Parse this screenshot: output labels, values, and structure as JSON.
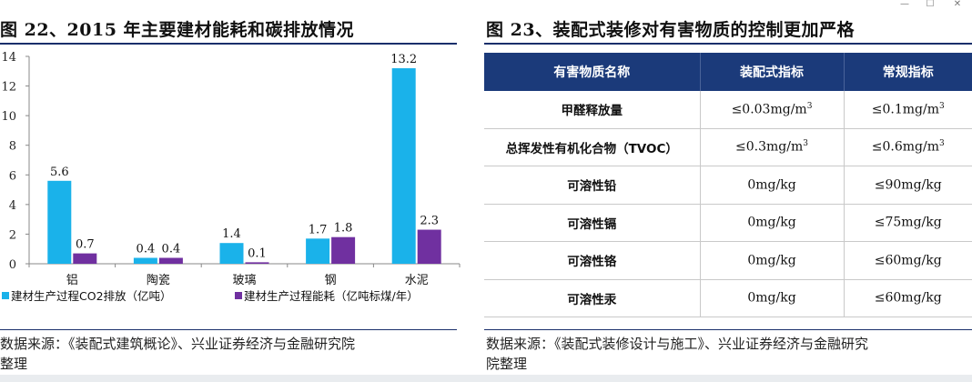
{
  "window": {
    "minimize": "—",
    "maximize": "☐",
    "close": "✕"
  },
  "left": {
    "title": "图 22、2015 年主要建材能耗和碳排放情况",
    "source_line1": "数据来源：《装配式建筑概论》、兴业证券经济与金融研究院",
    "source_line2": "整理"
  },
  "right": {
    "title": "图 23、装配式装修对有害物质的控制更加严格",
    "source_line1": "数据来源：《装配式装修设计与施工》、兴业证券经济与金融研究",
    "source_line2": "院整理",
    "table": {
      "headers": [
        "有害物质名称",
        "装配式指标",
        "常规指标"
      ],
      "rows": [
        {
          "name": "甲醛释放量",
          "a": "≤0.03mg/m",
          "a_sup": "3",
          "b": "≤0.1mg/m",
          "b_sup": "3"
        },
        {
          "name": "总挥发性有机化合物（TVOC）",
          "a": "≤0.3mg/m",
          "a_sup": "3",
          "b": "≤0.6mg/m",
          "b_sup": "3"
        },
        {
          "name": "可溶性铅",
          "a": "0mg/kg",
          "a_sup": "",
          "b": "≤90mg/kg",
          "b_sup": ""
        },
        {
          "name": "可溶性镉",
          "a": "0mg/kg",
          "a_sup": "",
          "b": "≤75mg/kg",
          "b_sup": ""
        },
        {
          "name": "可溶性铬",
          "a": "0mg/kg",
          "a_sup": "",
          "b": "≤60mg/kg",
          "b_sup": ""
        },
        {
          "name": "可溶性汞",
          "a": "0mg/kg",
          "a_sup": "",
          "b": "≤60mg/kg",
          "b_sup": ""
        }
      ]
    }
  },
  "chart_data": {
    "type": "bar",
    "categories": [
      "铝",
      "陶瓷",
      "玻璃",
      "钢",
      "水泥"
    ],
    "series": [
      {
        "name": "建材生产过程CO2排放（亿吨）",
        "values": [
          5.6,
          0.4,
          1.4,
          1.7,
          13.2
        ],
        "color": "#1ab2ea"
      },
      {
        "name": "建材生产过程能耗（亿吨标煤/年）",
        "values": [
          0.7,
          0.4,
          0.1,
          1.8,
          2.3
        ],
        "color": "#7030a0"
      }
    ],
    "data_labels": [
      "5.6",
      "0.7",
      "0.4",
      "0.4",
      "1.4",
      "0.1",
      "1.7",
      "1.8",
      "13.2",
      "2.3"
    ],
    "ylim": [
      0,
      14
    ],
    "yticks": [
      0,
      2,
      4,
      6,
      8,
      10,
      12,
      14
    ],
    "ytick_labels": [
      "0",
      "2",
      "4",
      "6",
      "8",
      "10",
      "12",
      "14"
    ],
    "legend_position": "bottom",
    "grid": false
  }
}
